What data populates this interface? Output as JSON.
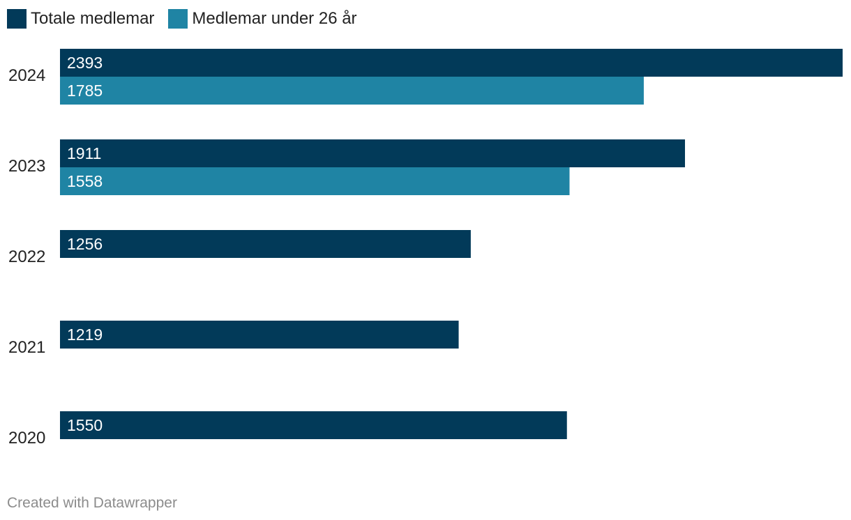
{
  "chart_data": {
    "type": "bar",
    "orientation": "horizontal",
    "categories": [
      "2024",
      "2023",
      "2022",
      "2021",
      "2020"
    ],
    "series": [
      {
        "name": "Totale medlemar",
        "color": "#023a59",
        "values": [
          2393,
          1911,
          1256,
          1219,
          1550
        ]
      },
      {
        "name": "Medlemar under 26 år",
        "color": "#1f84a4",
        "values": [
          1785,
          1558,
          null,
          null,
          null
        ]
      }
    ],
    "xlim": [
      0,
      2393
    ],
    "grid": false,
    "legend_position": "top-left",
    "value_labels": "inside-start"
  },
  "footer": {
    "credit": "Created with Datawrapper"
  }
}
